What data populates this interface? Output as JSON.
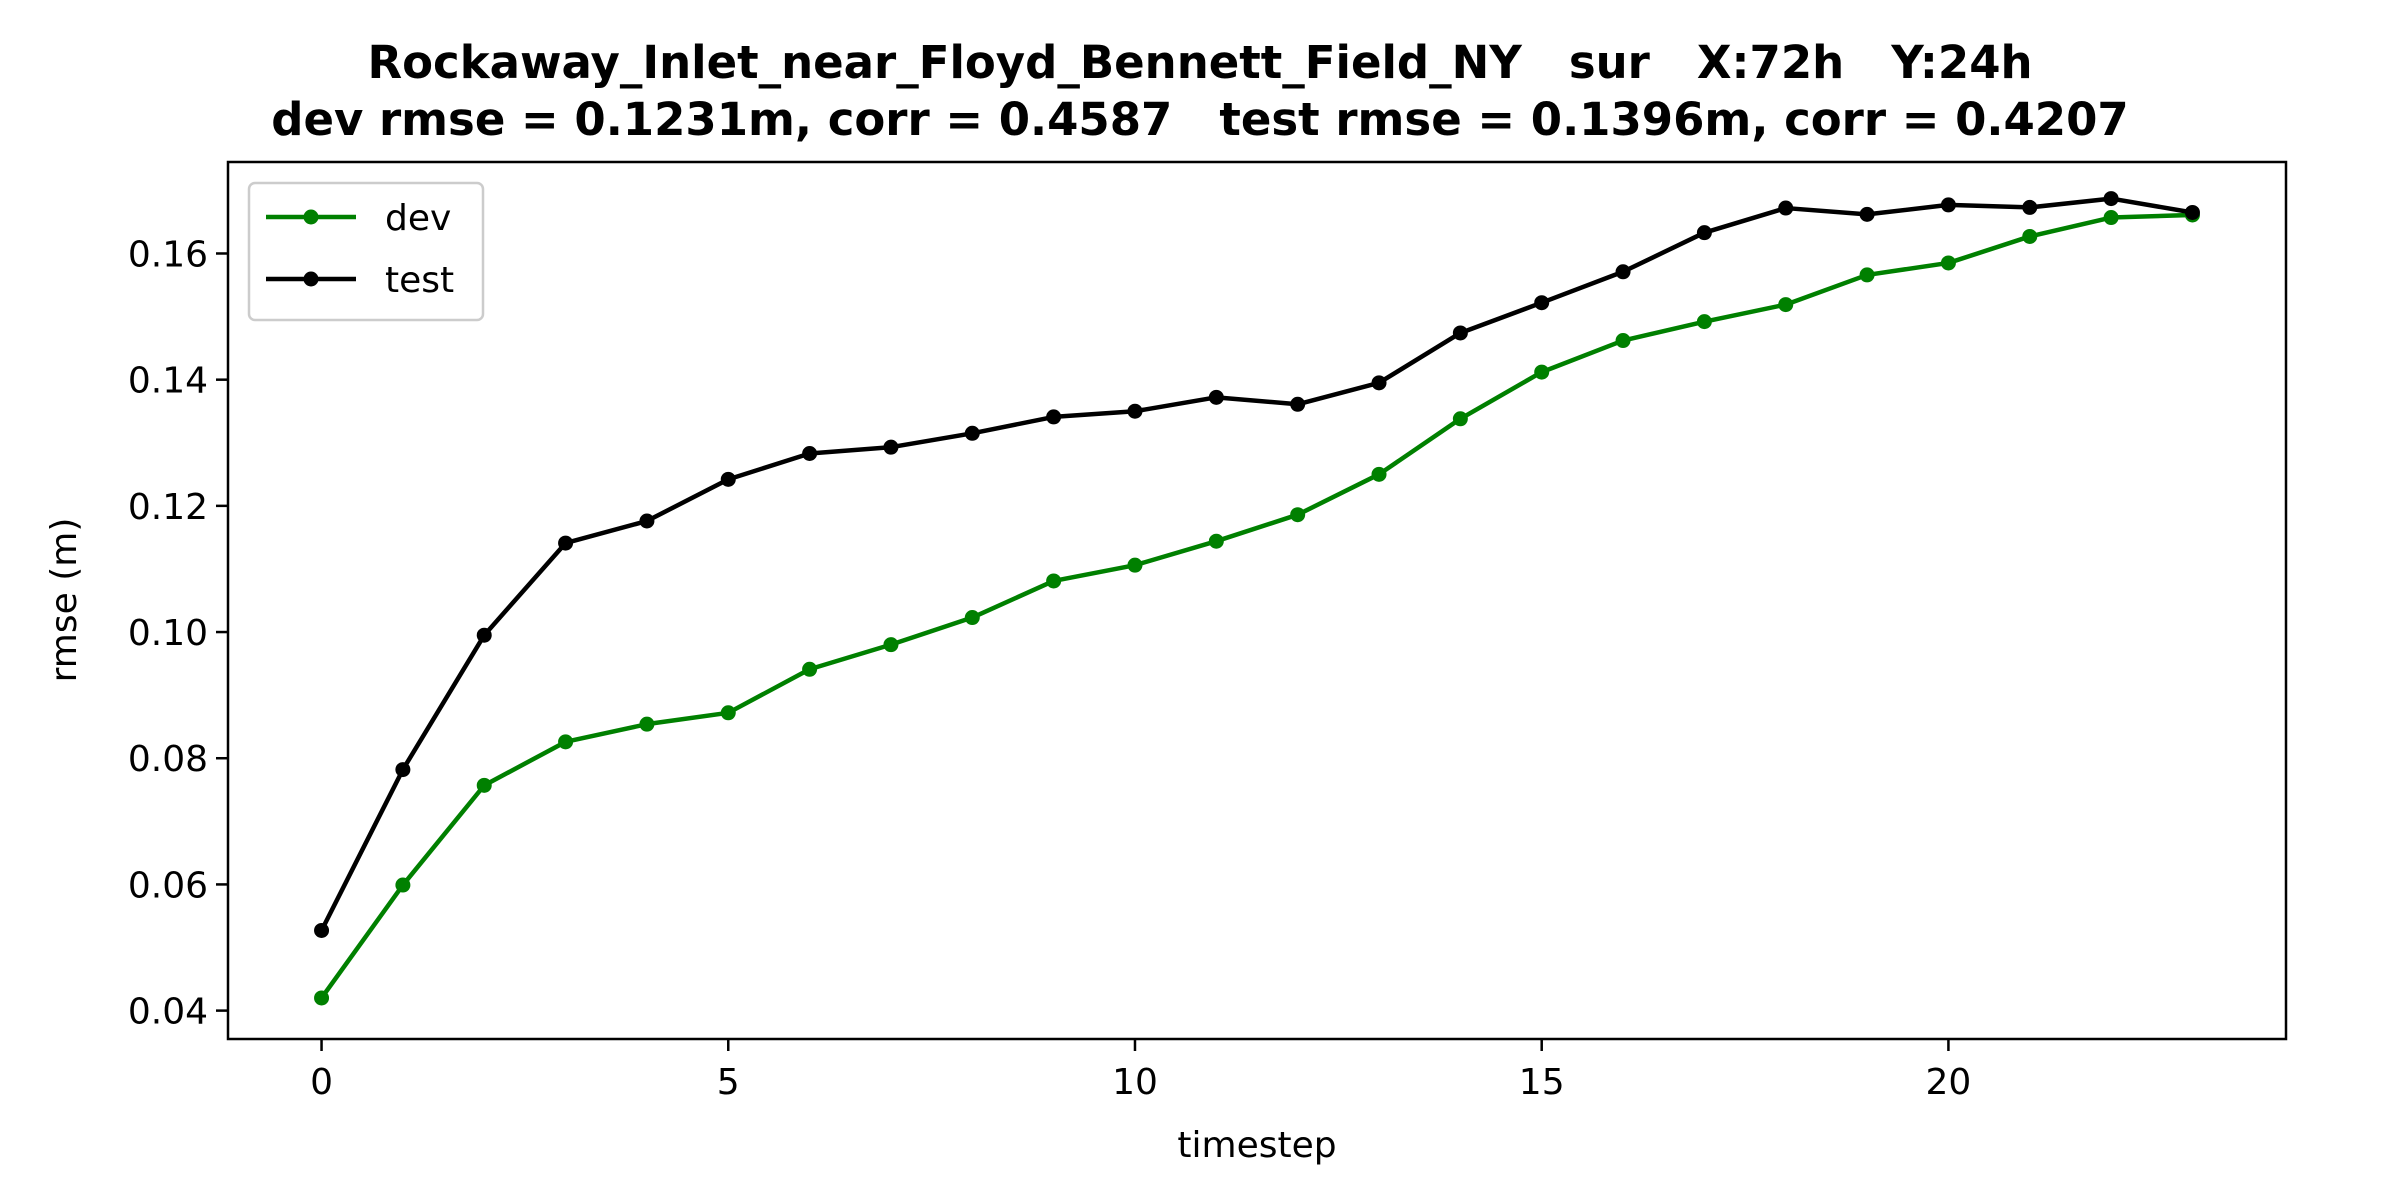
{
  "chart_data": {
    "type": "line",
    "title": "Rockaway_Inlet_near_Floyd_Bennett_Field_NY   sur   X:72h   Y:24h",
    "subtitle": "dev rmse = 0.1231m, corr = 0.4587   test rmse = 0.1396m, corr = 0.4207",
    "xlabel": "timestep",
    "ylabel": "rmse (m)",
    "xlim": [
      -1.15,
      24.15
    ],
    "ylim": [
      0.0355,
      0.1745
    ],
    "xticks": [
      0,
      5,
      10,
      15,
      20
    ],
    "xtick_labels": [
      "0",
      "5",
      "10",
      "15",
      "20"
    ],
    "yticks": [
      0.04,
      0.06,
      0.08,
      0.1,
      0.12,
      0.14,
      0.16
    ],
    "ytick_labels": [
      "0.04",
      "0.06",
      "0.08",
      "0.10",
      "0.12",
      "0.14",
      "0.16"
    ],
    "grid": false,
    "legend_position": "upper-left",
    "x": [
      0,
      1,
      2,
      3,
      4,
      5,
      6,
      7,
      8,
      9,
      10,
      11,
      12,
      13,
      14,
      15,
      16,
      17,
      18,
      19,
      20,
      21,
      22,
      23
    ],
    "series": [
      {
        "name": "dev",
        "color": "#008000",
        "marker": "circle",
        "values": [
          0.042,
          0.0599,
          0.0757,
          0.0826,
          0.0854,
          0.0872,
          0.0941,
          0.098,
          0.1023,
          0.1081,
          0.1106,
          0.1144,
          0.1186,
          0.125,
          0.1338,
          0.1412,
          0.1462,
          0.1492,
          0.1519,
          0.1566,
          0.1585,
          0.1627,
          0.1657,
          0.1661
        ]
      },
      {
        "name": "test",
        "color": "#000000",
        "marker": "circle",
        "values": [
          0.0527,
          0.0782,
          0.0995,
          0.1141,
          0.1176,
          0.1242,
          0.1283,
          0.1293,
          0.1315,
          0.1341,
          0.135,
          0.1372,
          0.1361,
          0.1395,
          0.1474,
          0.1522,
          0.1571,
          0.1633,
          0.1672,
          0.1662,
          0.1677,
          0.1673,
          0.1687,
          0.1665
        ]
      }
    ]
  }
}
